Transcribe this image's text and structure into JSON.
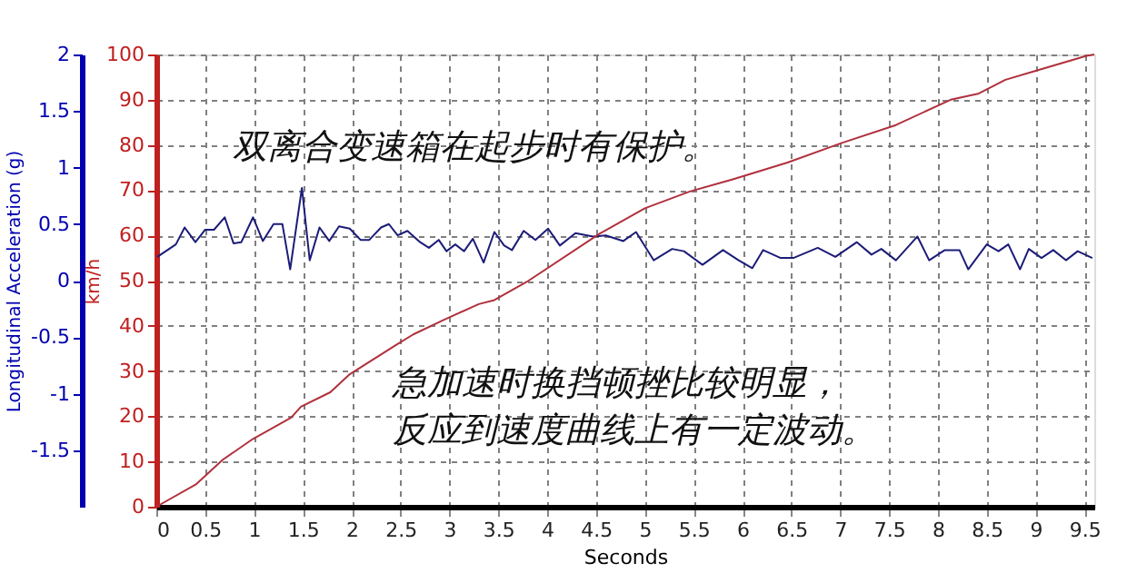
{
  "chart_data": {
    "type": "line",
    "xlabel": "Seconds",
    "ylabel": "Longitudinal Acceleration (g)",
    "y2label": "km/h",
    "annotations": [
      "双离合变速箱在起步时有保护。",
      "急加速时换挡顿挫比较明显，",
      "反应到速度曲线上有一定波动。"
    ],
    "xlim": [
      0,
      9.6
    ],
    "xticks": [
      0,
      0.5,
      1,
      1.5,
      2,
      2.5,
      3,
      3.5,
      4,
      4.5,
      5,
      5.5,
      6,
      6.5,
      7,
      7.5,
      8,
      8.5,
      9,
      9.5
    ],
    "ylim": [
      -2,
      2
    ],
    "yticks": [
      -1.5,
      -1,
      -0.5,
      0,
      0.5,
      1,
      1.5,
      2
    ],
    "y2lim": [
      0,
      100
    ],
    "y2ticks": [
      0,
      10,
      20,
      30,
      40,
      50,
      60,
      70,
      80,
      90,
      100
    ],
    "grid": true,
    "marker": "none",
    "line_style": "solid",
    "series": [
      {
        "color": "#1c1c78",
        "x": [
          0.01,
          0.2,
          0.29,
          0.4,
          0.5,
          0.59,
          0.7,
          0.79,
          0.87,
          0.99,
          1.09,
          1.2,
          1.29,
          1.37,
          1.49,
          1.57,
          1.67,
          1.77,
          1.87,
          1.98,
          2.09,
          2.18,
          2.3,
          2.38,
          2.47,
          2.57,
          2.7,
          2.79,
          2.89,
          2.97,
          3.06,
          3.15,
          3.24,
          3.35,
          3.46,
          3.56,
          3.64,
          3.76,
          3.88,
          4.01,
          4.13,
          4.29,
          4.47,
          4.6,
          4.78,
          4.91,
          5.09,
          5.28,
          5.4,
          5.59,
          5.8,
          5.96,
          6.1,
          6.21,
          6.39,
          6.52,
          6.77,
          6.95,
          7.17,
          7.32,
          7.42,
          7.57,
          7.79,
          7.91,
          8.07,
          8.22,
          8.31,
          8.5,
          8.62,
          8.72,
          8.84,
          8.93,
          9.06,
          9.18,
          9.31,
          9.43,
          9.58
        ],
        "values": [
          0.21,
          0.32,
          0.47,
          0.34,
          0.45,
          0.45,
          0.56,
          0.33,
          0.34,
          0.56,
          0.35,
          0.5,
          0.5,
          0.1,
          0.82,
          0.18,
          0.47,
          0.35,
          0.48,
          0.46,
          0.36,
          0.36,
          0.47,
          0.5,
          0.4,
          0.44,
          0.34,
          0.29,
          0.36,
          0.26,
          0.32,
          0.26,
          0.37,
          0.16,
          0.43,
          0.31,
          0.27,
          0.44,
          0.36,
          0.46,
          0.31,
          0.42,
          0.39,
          0.4,
          0.35,
          0.43,
          0.18,
          0.28,
          0.26,
          0.14,
          0.27,
          0.18,
          0.11,
          0.27,
          0.2,
          0.2,
          0.29,
          0.21,
          0.34,
          0.23,
          0.28,
          0.18,
          0.39,
          0.18,
          0.27,
          0.27,
          0.1,
          0.32,
          0.26,
          0.32,
          0.1,
          0.28,
          0.2,
          0.27,
          0.18,
          0.26,
          0.2
        ]
      },
      {
        "color": "#b0303c",
        "axis": "y2",
        "x": [
          0,
          0.41,
          0.68,
          0.99,
          1.38,
          1.48,
          1.78,
          1.98,
          2.45,
          2.63,
          2.94,
          3.3,
          3.46,
          3.79,
          4.54,
          5.0,
          5.46,
          5.9,
          6.46,
          7.01,
          7.57,
          8.13,
          8.41,
          8.69,
          9.0,
          9.52,
          9.6
        ],
        "values": [
          0,
          5,
          10.4,
          15,
          19.7,
          22.1,
          25.3,
          29.3,
          35.7,
          38.1,
          41.3,
          44.8,
          45.7,
          49.7,
          60.4,
          66,
          69.7,
          72.4,
          76.1,
          80.4,
          84.4,
          90,
          91.3,
          94.4,
          96.4,
          99.7,
          100
        ]
      }
    ]
  }
}
